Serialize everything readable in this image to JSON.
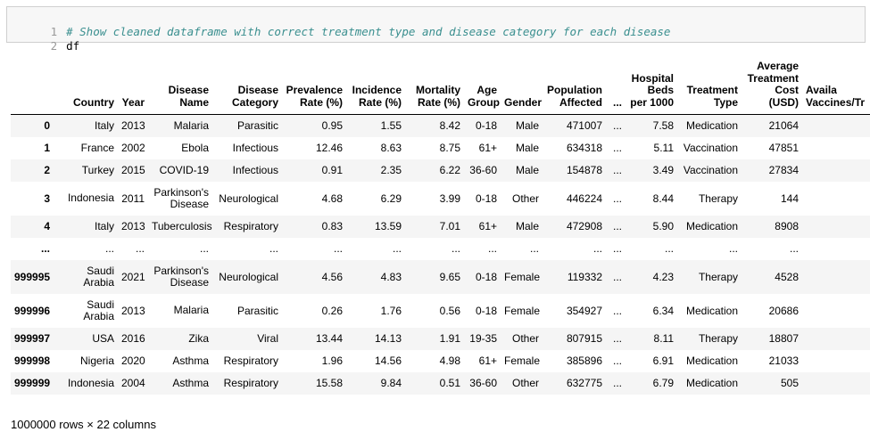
{
  "code_cell": {
    "lines": [
      {
        "number": "1",
        "text": "# Show cleaned dataframe with correct treatment type and disease category for each disease"
      },
      {
        "number": "2",
        "text": "df"
      }
    ]
  },
  "dataframe": {
    "columns": [
      "",
      "Country",
      "Year",
      "Disease Name",
      "Disease Category",
      "Prevalence Rate (%)",
      "Incidence Rate (%)",
      "Mortality Rate (%)",
      "Age Group",
      "Gender",
      "Population Affected",
      "...",
      "Hospital Beds per 1000",
      "Treatment Type",
      "Average Treatment Cost (USD)",
      "Availa Vaccines/Tr"
    ],
    "rows": [
      [
        "0",
        "Italy",
        "2013",
        "Malaria",
        "Parasitic",
        "0.95",
        "1.55",
        "8.42",
        "0-18",
        "Male",
        "471007",
        "...",
        "7.58",
        "Medication",
        "21064",
        ""
      ],
      [
        "1",
        "France",
        "2002",
        "Ebola",
        "Infectious",
        "12.46",
        "8.63",
        "8.75",
        "61+",
        "Male",
        "634318",
        "...",
        "5.11",
        "Vaccination",
        "47851",
        ""
      ],
      [
        "2",
        "Turkey",
        "2015",
        "COVID-19",
        "Infectious",
        "0.91",
        "2.35",
        "6.22",
        "36-60",
        "Male",
        "154878",
        "...",
        "3.49",
        "Vaccination",
        "27834",
        ""
      ],
      [
        "3",
        "Indonesia",
        "2011",
        "Parkinson's Disease",
        "Neurological",
        "4.68",
        "6.29",
        "3.99",
        "0-18",
        "Other",
        "446224",
        "...",
        "8.44",
        "Therapy",
        "144",
        ""
      ],
      [
        "4",
        "Italy",
        "2013",
        "Tuberculosis",
        "Respiratory",
        "0.83",
        "13.59",
        "7.01",
        "61+",
        "Male",
        "472908",
        "...",
        "5.90",
        "Medication",
        "8908",
        ""
      ],
      [
        "...",
        "...",
        "...",
        "...",
        "...",
        "...",
        "...",
        "...",
        "...",
        "...",
        "...",
        "...",
        "...",
        "...",
        "...",
        ""
      ],
      [
        "999995",
        "Saudi Arabia",
        "2021",
        "Parkinson's Disease",
        "Neurological",
        "4.56",
        "4.83",
        "9.65",
        "0-18",
        "Female",
        "119332",
        "...",
        "4.23",
        "Therapy",
        "4528",
        ""
      ],
      [
        "999996",
        "Saudi Arabia",
        "2013",
        "Malaria",
        "Parasitic",
        "0.26",
        "1.76",
        "0.56",
        "0-18",
        "Female",
        "354927",
        "...",
        "6.34",
        "Medication",
        "20686",
        ""
      ],
      [
        "999997",
        "USA",
        "2016",
        "Zika",
        "Viral",
        "13.44",
        "14.13",
        "1.91",
        "19-35",
        "Other",
        "807915",
        "...",
        "8.11",
        "Therapy",
        "18807",
        ""
      ],
      [
        "999998",
        "Nigeria",
        "2020",
        "Asthma",
        "Respiratory",
        "1.96",
        "14.56",
        "4.98",
        "61+",
        "Female",
        "385896",
        "...",
        "6.91",
        "Medication",
        "21033",
        ""
      ],
      [
        "999999",
        "Indonesia",
        "2004",
        "Asthma",
        "Respiratory",
        "15.58",
        "9.84",
        "0.51",
        "36-60",
        "Other",
        "632775",
        "...",
        "6.79",
        "Medication",
        "505",
        ""
      ]
    ],
    "tall_rows": [
      "3",
      "999995",
      "999996"
    ],
    "shape_text": "1000000 rows × 22 columns"
  }
}
